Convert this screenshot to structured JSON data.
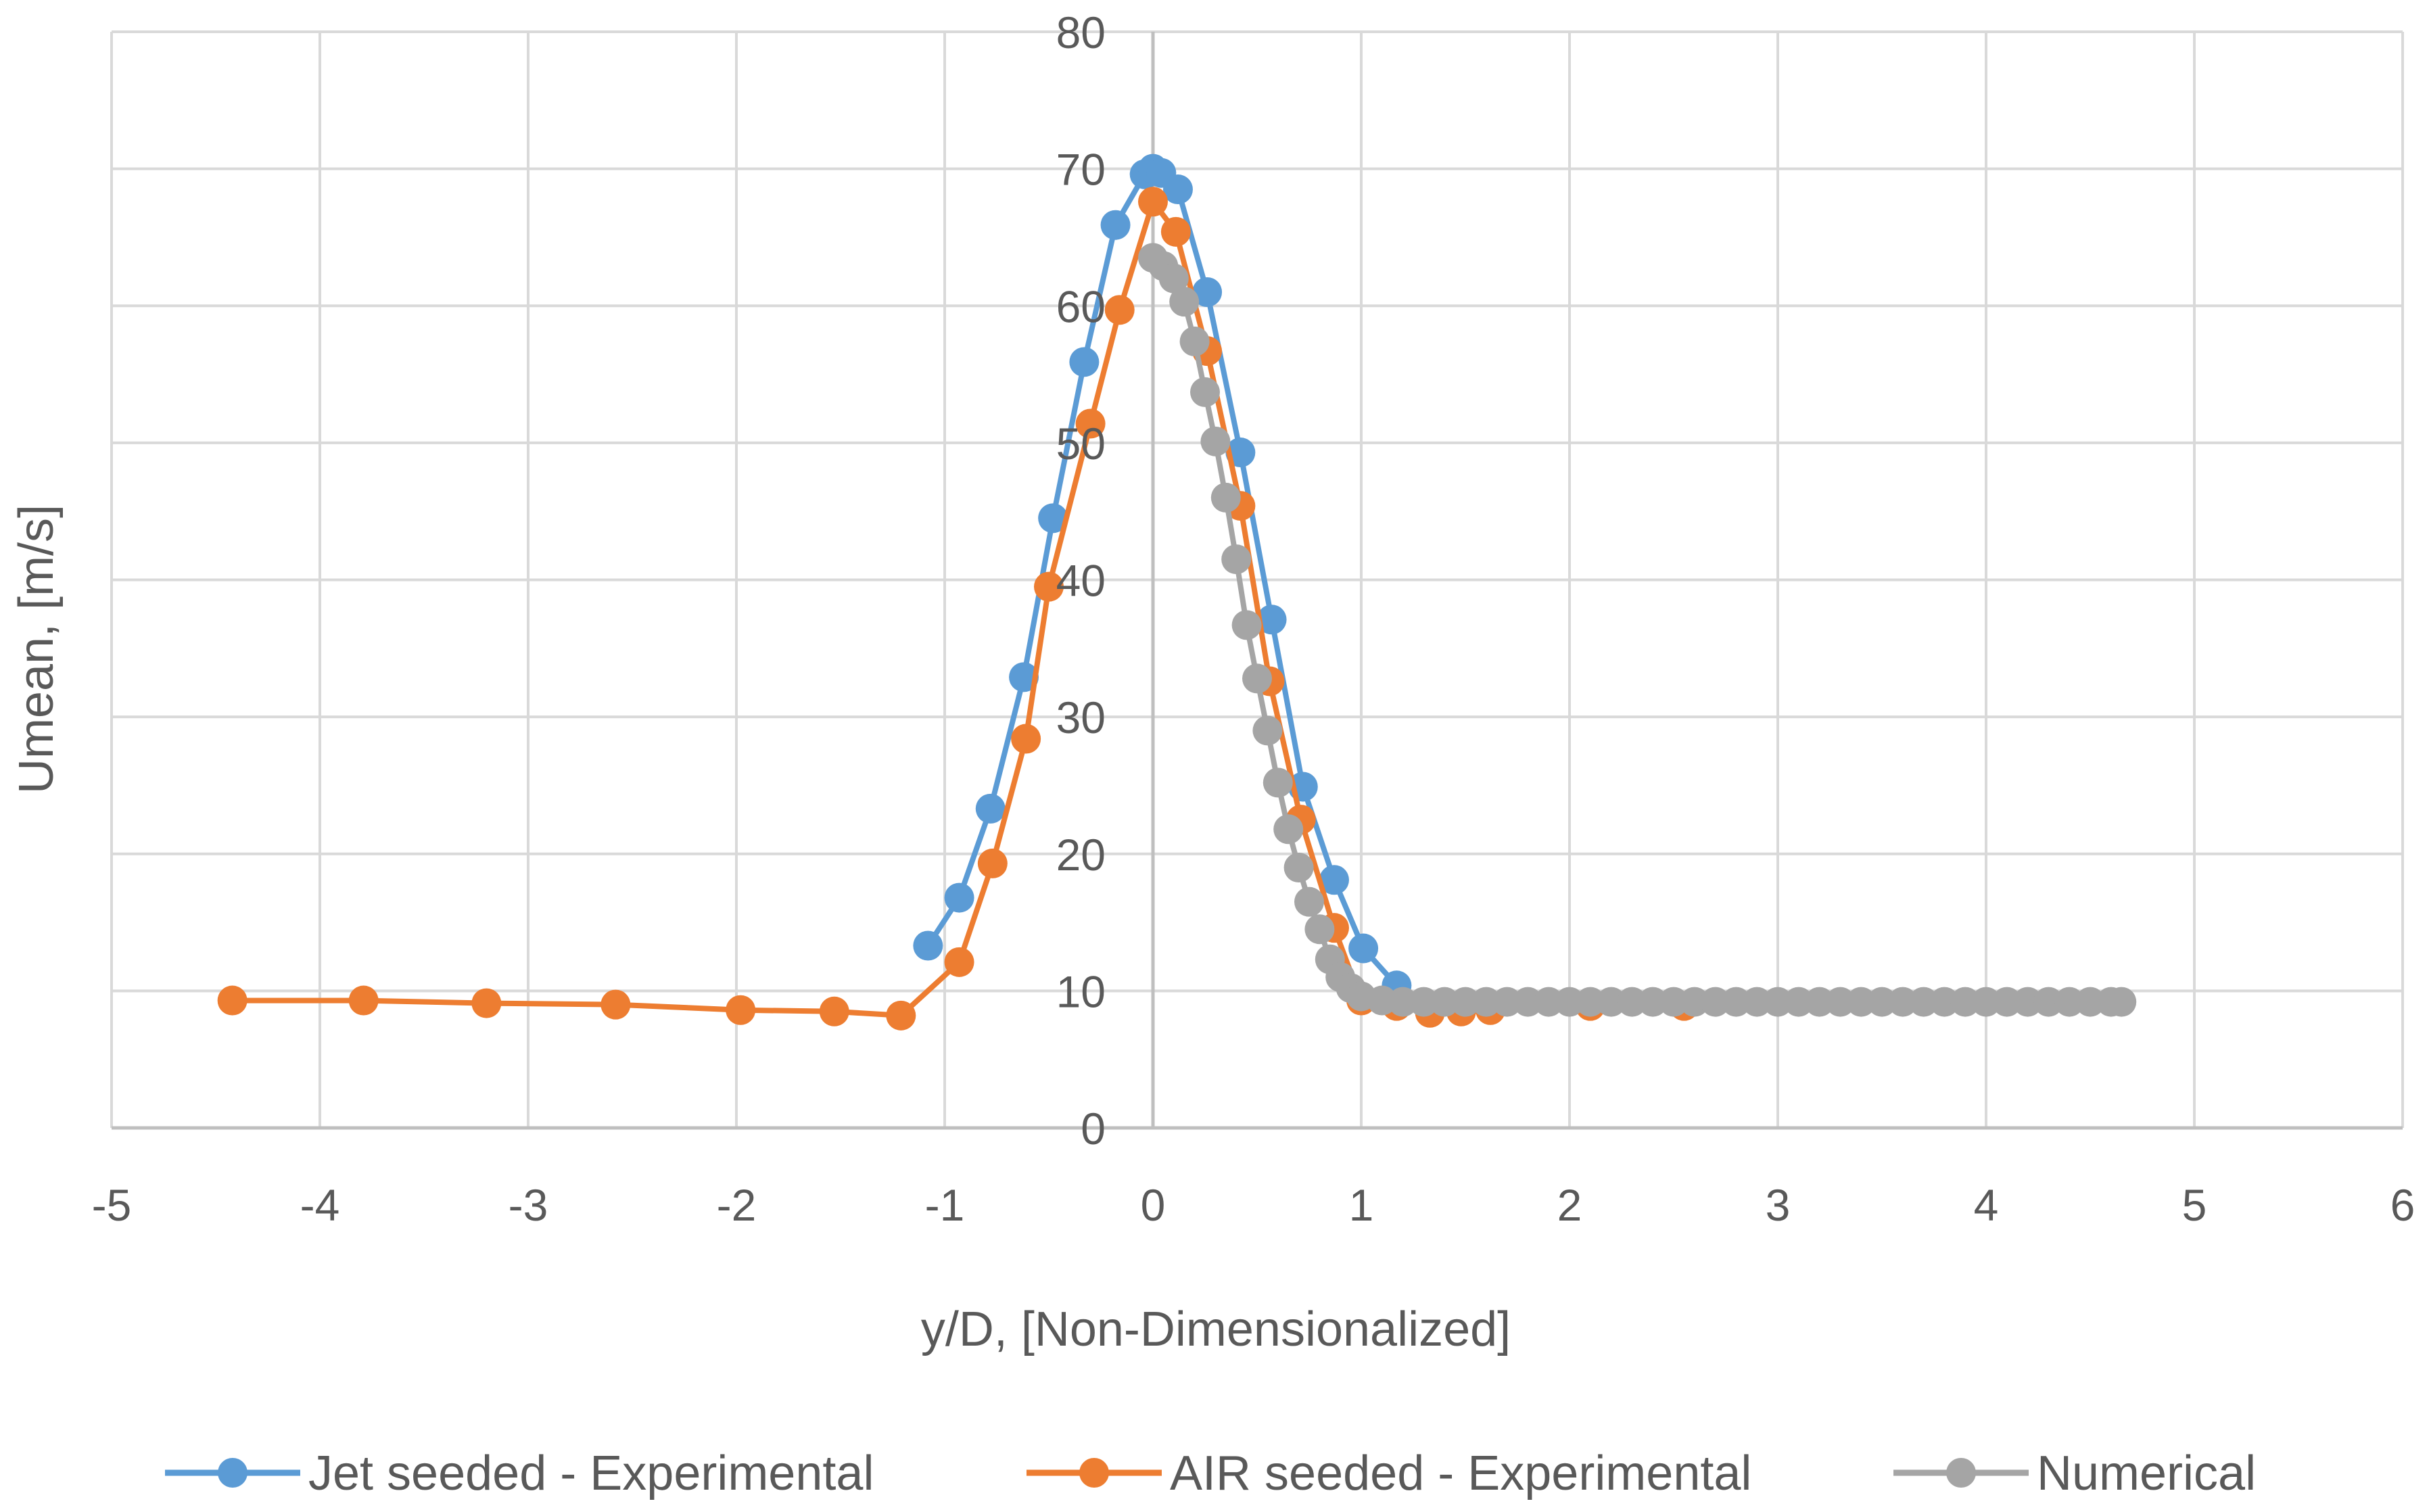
{
  "chart_data": {
    "type": "line",
    "title": "",
    "xlabel": "y/D, [Non-Dimensionalized]",
    "ylabel": "Umean, [m/s]",
    "xlim": [
      -5,
      6
    ],
    "ylim": [
      0,
      80
    ],
    "xticks": [
      -5,
      -4,
      -3,
      -2,
      -1,
      0,
      1,
      2,
      3,
      4,
      5,
      6
    ],
    "yticks": [
      0,
      10,
      20,
      30,
      40,
      50,
      60,
      70,
      80
    ],
    "grid": true,
    "legend_position": "bottom",
    "series": [
      {
        "name": "Jet seeded - Experimental",
        "color": "#5b9bd5",
        "x": [
          -1.08,
          -0.93,
          -0.78,
          -0.62,
          -0.48,
          -0.33,
          -0.18,
          -0.04,
          0.0,
          0.04,
          0.12,
          0.26,
          0.42,
          0.57,
          0.72,
          0.87,
          1.01,
          1.17
        ],
        "y": [
          13.3,
          16.8,
          23.3,
          32.9,
          44.5,
          55.9,
          65.9,
          69.6,
          70.0,
          69.7,
          68.5,
          61.0,
          49.3,
          37.1,
          24.9,
          18.1,
          13.1,
          10.4
        ]
      },
      {
        "name": "AIR seeded - Experimental",
        "color": "#ed7d31",
        "x": [
          -4.42,
          -3.79,
          -3.2,
          -2.58,
          -1.98,
          -1.53,
          -1.21,
          -0.93,
          -0.77,
          -0.61,
          -0.5,
          -0.3,
          -0.16,
          0.0,
          0.11,
          0.26,
          0.42,
          0.56,
          0.71,
          0.87,
          1.0,
          1.17,
          1.33,
          1.48,
          1.62,
          2.1,
          2.55
        ],
        "y": [
          9.3,
          9.3,
          9.1,
          9.0,
          8.6,
          8.5,
          8.2,
          12.1,
          19.3,
          28.4,
          39.5,
          51.4,
          59.7,
          67.6,
          65.4,
          56.7,
          45.4,
          32.6,
          22.5,
          14.6,
          9.3,
          8.9,
          8.4,
          8.5,
          8.6,
          8.9,
          8.9
        ]
      },
      {
        "name": "Numerical",
        "color": "#a5a5a5",
        "x": [
          0.0,
          0.05,
          0.1,
          0.15,
          0.2,
          0.25,
          0.3,
          0.35,
          0.4,
          0.45,
          0.5,
          0.55,
          0.6,
          0.65,
          0.7,
          0.75,
          0.8,
          0.85,
          0.9,
          0.95,
          1.0,
          1.1,
          1.2,
          1.3,
          1.4,
          1.5,
          1.6,
          1.7,
          1.8,
          1.9,
          2.0,
          2.1,
          2.2,
          2.3,
          2.4,
          2.5,
          2.6,
          2.7,
          2.8,
          2.9,
          3.0,
          3.1,
          3.2,
          3.3,
          3.4,
          3.5,
          3.6,
          3.7,
          3.8,
          3.9,
          4.0,
          4.1,
          4.2,
          4.3,
          4.4,
          4.5,
          4.6,
          4.65
        ],
        "y": [
          63.5,
          62.9,
          62.0,
          60.3,
          57.4,
          53.7,
          50.1,
          46.0,
          41.5,
          36.7,
          32.8,
          29.0,
          25.2,
          21.8,
          19.0,
          16.5,
          14.5,
          12.3,
          11.0,
          10.2,
          9.6,
          9.3,
          9.2,
          9.2,
          9.2,
          9.2,
          9.2,
          9.2,
          9.2,
          9.2,
          9.2,
          9.2,
          9.2,
          9.2,
          9.2,
          9.2,
          9.2,
          9.2,
          9.2,
          9.2,
          9.2,
          9.2,
          9.2,
          9.2,
          9.2,
          9.2,
          9.2,
          9.2,
          9.2,
          9.2,
          9.2,
          9.2,
          9.2,
          9.2,
          9.2,
          9.2,
          9.2,
          9.2
        ]
      }
    ]
  },
  "colors": {
    "grid": "#d9d9d9",
    "axis": "#bfbfbf",
    "text": "#595959"
  }
}
